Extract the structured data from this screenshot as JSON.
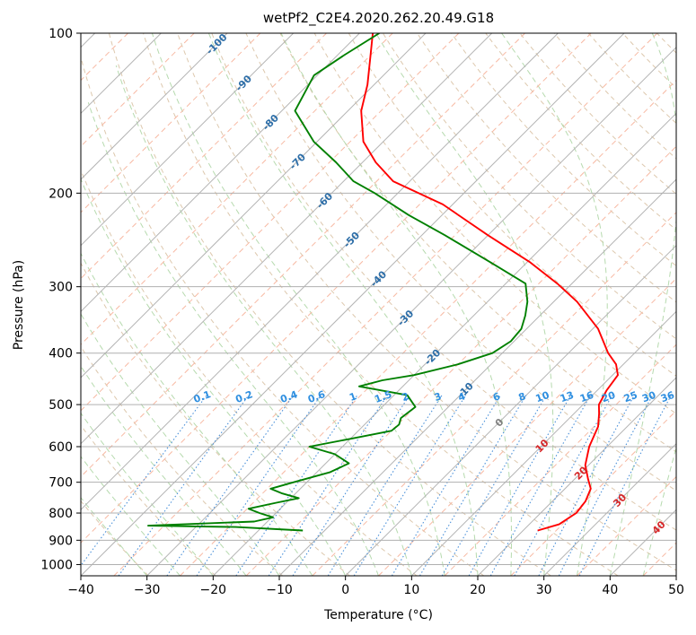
{
  "chart_data": {
    "type": "line",
    "title": "wetPf2_C2E4.2020.262.20.49.G18",
    "xlabel": "Temperature (°C)",
    "ylabel": "Pressure (hPa)",
    "xlim": [
      -40,
      50
    ],
    "ylim": [
      1050,
      100
    ],
    "y_scale": "log",
    "x_ticks": [
      -40,
      -30,
      -20,
      -10,
      0,
      10,
      20,
      30,
      40,
      50
    ],
    "y_ticks": [
      100,
      200,
      300,
      400,
      500,
      600,
      700,
      800,
      900,
      1000
    ],
    "grid": true,
    "skew": "45-degree skewed temperature isotherms",
    "isotherm_labels": [
      -100,
      -90,
      -80,
      -70,
      -60,
      -50,
      -40,
      -30,
      -20,
      -10,
      0,
      10,
      20,
      30,
      40
    ],
    "mixing_ratio_labels": [
      "0.1",
      "0.2",
      "0.4",
      "0.6",
      "1",
      "1.5",
      "2",
      "3",
      "4",
      "6",
      "8",
      "10",
      "13",
      "16",
      "20",
      "25",
      "30",
      "36"
    ],
    "series": [
      {
        "role": "temperature",
        "color": "#ff0000",
        "points": [
          [
            863,
            22.2
          ],
          [
            840,
            24.5
          ],
          [
            800,
            25.4
          ],
          [
            760,
            25.0
          ],
          [
            720,
            23.9
          ],
          [
            690,
            22.0
          ],
          [
            650,
            19.5
          ],
          [
            600,
            17.3
          ],
          [
            550,
            15.6
          ],
          [
            520,
            13.8
          ],
          [
            500,
            12.4
          ],
          [
            470,
            11.4
          ],
          [
            440,
            10.8
          ],
          [
            420,
            8.9
          ],
          [
            400,
            6.0
          ],
          [
            360,
            0.8
          ],
          [
            320,
            -6.5
          ],
          [
            296,
            -12.2
          ],
          [
            270,
            -19.5
          ],
          [
            240,
            -30.0
          ],
          [
            210,
            -41.5
          ],
          [
            190,
            -52.5
          ],
          [
            175,
            -58.0
          ],
          [
            160,
            -63.0
          ],
          [
            140,
            -68.0
          ],
          [
            125,
            -71.0
          ],
          [
            110,
            -75.0
          ],
          [
            100,
            -78.0
          ]
        ]
      },
      {
        "role": "dewpoint",
        "color": "#008000",
        "points": [
          [
            863,
            -13.3
          ],
          [
            850,
            -24.0
          ],
          [
            845,
            -37.4
          ],
          [
            830,
            -22.0
          ],
          [
            815,
            -19.8
          ],
          [
            800,
            -22.5
          ],
          [
            785,
            -24.8
          ],
          [
            765,
            -21.5
          ],
          [
            750,
            -18.8
          ],
          [
            735,
            -22.0
          ],
          [
            720,
            -24.5
          ],
          [
            700,
            -22.0
          ],
          [
            670,
            -18.0
          ],
          [
            645,
            -16.5
          ],
          [
            620,
            -20.0
          ],
          [
            600,
            -25.0
          ],
          [
            580,
            -20.0
          ],
          [
            560,
            -15.0
          ],
          [
            545,
            -14.8
          ],
          [
            530,
            -15.5
          ],
          [
            505,
            -15.0
          ],
          [
            480,
            -18.0
          ],
          [
            462,
            -26.6
          ],
          [
            450,
            -24.0
          ],
          [
            440,
            -20.0
          ],
          [
            420,
            -15.0
          ],
          [
            400,
            -11.5
          ],
          [
            380,
            -10.5
          ],
          [
            360,
            -10.8
          ],
          [
            340,
            -12.2
          ],
          [
            320,
            -14.0
          ],
          [
            296,
            -17.0
          ],
          [
            270,
            -25.5
          ],
          [
            240,
            -36.5
          ],
          [
            220,
            -45.0
          ],
          [
            200,
            -53.5
          ],
          [
            190,
            -58.5
          ],
          [
            175,
            -64.0
          ],
          [
            160,
            -70.5
          ],
          [
            140,
            -78.0
          ],
          [
            120,
            -80.5
          ],
          [
            110,
            -79.0
          ],
          [
            100,
            -77.0
          ]
        ]
      }
    ]
  }
}
